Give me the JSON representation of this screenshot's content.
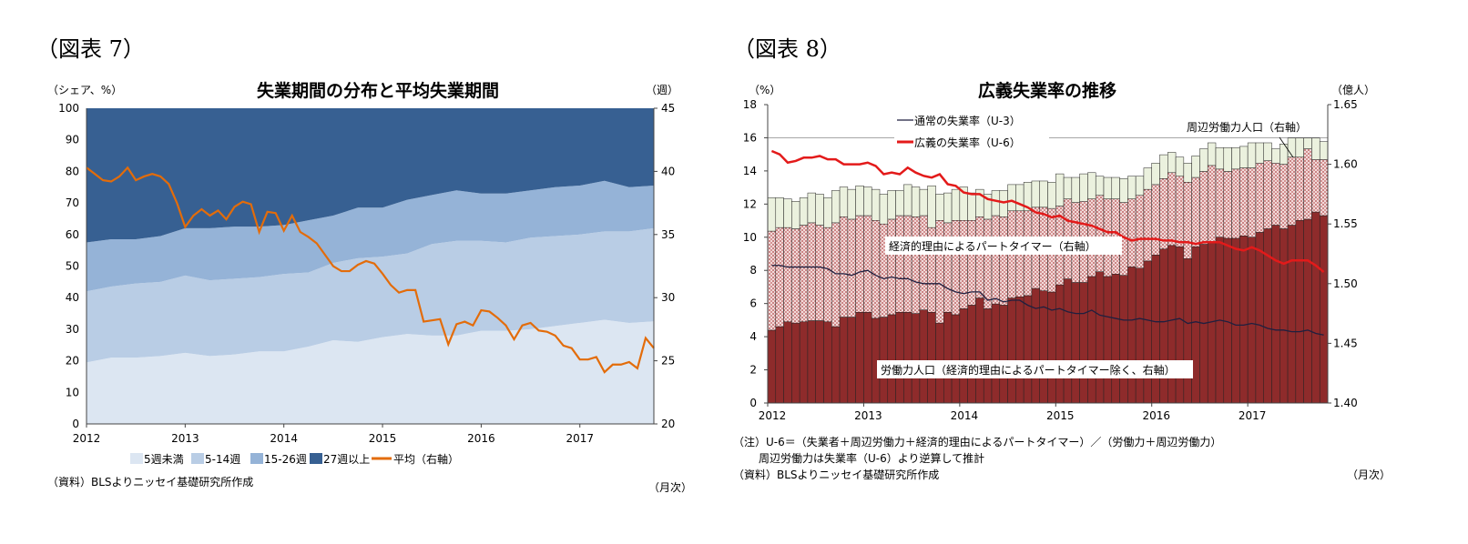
{
  "chart_data": [
    {
      "type": "area",
      "figure_label": "（図表 7）",
      "title": "失業期間の分布と平均失業期間",
      "ylabel": "（シェア、%）",
      "y2label": "（週）",
      "xlabel": "（月次）",
      "source": "（資料）BLSよりニッセイ基礎研究所作成",
      "ylim": [
        0,
        100
      ],
      "y2lim": [
        20,
        45
      ],
      "yticks": [
        "0",
        "10",
        "20",
        "30",
        "40",
        "50",
        "60",
        "70",
        "80",
        "90",
        "100"
      ],
      "y2ticks": [
        "20",
        "25",
        "30",
        "35",
        "40",
        "45"
      ],
      "xticks": [
        "2012",
        "2013",
        "2014",
        "2015",
        "2016",
        "2017"
      ],
      "legend_position": "bottom",
      "area_x": [
        "2012-01",
        "2012-04",
        "2012-07",
        "2012-10",
        "2013-01",
        "2013-04",
        "2013-07",
        "2013-10",
        "2014-01",
        "2014-04",
        "2014-07",
        "2014-10",
        "2015-01",
        "2015-04",
        "2015-07",
        "2015-10",
        "2016-01",
        "2016-04",
        "2016-07",
        "2016-10",
        "2017-01",
        "2017-04",
        "2017-07",
        "2017-10"
      ],
      "series": [
        {
          "name": "5週未満",
          "color": "#dce6f2",
          "stacked": true,
          "values": [
            19.5,
            21,
            21,
            21.5,
            22.5,
            21.5,
            22,
            23,
            23,
            24.5,
            26.5,
            26,
            27.5,
            28.5,
            28,
            28,
            29.5,
            29.5,
            30,
            31,
            32,
            33,
            32,
            32.5
          ]
        },
        {
          "name": "5-14週",
          "color": "#b9cde5",
          "stacked": true,
          "values": [
            22.5,
            22.5,
            23.5,
            23.5,
            24.5,
            24,
            24,
            23.5,
            24.5,
            23.5,
            24.5,
            26.5,
            25.5,
            25.5,
            29,
            30,
            28.5,
            28,
            29,
            28.5,
            28,
            28,
            29,
            29.5
          ]
        },
        {
          "name": "15-26週",
          "color": "#95b3d7",
          "stacked": true,
          "values": [
            15.5,
            15,
            14,
            14.5,
            15,
            16.5,
            16.5,
            16,
            15.5,
            16.5,
            15,
            16,
            15.5,
            17,
            15.5,
            16,
            15,
            15.5,
            15,
            15.5,
            15.5,
            16,
            14,
            13.5
          ]
        },
        {
          "name": "27週以上",
          "color": "#376092",
          "stacked": true,
          "values": [
            42.5,
            41.5,
            41.5,
            40.5,
            38,
            38,
            37.5,
            37.5,
            37,
            35.5,
            34,
            31.5,
            31.5,
            29,
            27.5,
            26,
            27,
            27,
            26,
            25,
            24.5,
            23,
            25,
            24.5
          ]
        },
        {
          "name": "平均（右軸）",
          "color": "#e36c0a",
          "type": "line",
          "axis": "right",
          "x_start": "2012-01",
          "frequency": "monthly",
          "values": [
            40.3,
            39.8,
            39.3,
            39.2,
            39.6,
            40.3,
            39.3,
            39.6,
            39.8,
            39.6,
            39.0,
            37.5,
            35.6,
            36.5,
            37.0,
            36.5,
            36.9,
            36.2,
            37.2,
            37.6,
            37.4,
            35.2,
            36.8,
            36.7,
            35.3,
            36.5,
            35.2,
            34.8,
            34.3,
            33.4,
            32.5,
            32.1,
            32.1,
            32.6,
            32.9,
            32.7,
            31.9,
            31.0,
            30.4,
            30.6,
            30.6,
            28.1,
            28.2,
            28.3,
            26.3,
            27.9,
            28.1,
            27.8,
            29.0,
            28.9,
            28.4,
            27.8,
            26.7,
            27.8,
            28.0,
            27.4,
            27.3,
            27.0,
            26.2,
            26.0,
            25.1,
            25.1,
            25.3,
            24.1,
            24.7,
            24.7,
            24.9,
            24.4,
            26.8,
            26.0
          ]
        }
      ]
    },
    {
      "type": "bar+line",
      "figure_label": "（図表 8）",
      "title": "広義失業率の推移",
      "ylabel": "（%）",
      "y2label": "（億人）",
      "xlabel": "（月次）",
      "note1": "（注）U-6＝（失業者＋周辺労働力＋経済的理由によるパートタイマー）／（労働力＋周辺労働力）",
      "note2": "周辺労働力は失業率（U-6）より逆算して推計",
      "source": "（資料）BLSよりニッセイ基礎研究所作成",
      "ylim": [
        0,
        18
      ],
      "y2lim": [
        1.4,
        1.65
      ],
      "yticks": [
        "0",
        "2",
        "4",
        "6",
        "8",
        "10",
        "12",
        "14",
        "16",
        "18"
      ],
      "y2ticks": [
        "1.40",
        "1.45",
        "1.50",
        "1.55",
        "1.60",
        "1.65"
      ],
      "xticks": [
        "2012",
        "2013",
        "2014",
        "2015",
        "2016",
        "2017"
      ],
      "x_start": "2012-01",
      "frequency": "monthly",
      "bars_stacked_top_values": true,
      "bar_series": [
        {
          "name": "労働力人口（経済的理由によるパートタイマー除く、右軸）",
          "color": "#8e2b2b",
          "axis": "right",
          "values": [
            1.461,
            1.464,
            1.468,
            1.467,
            1.468,
            1.469,
            1.469,
            1.468,
            1.464,
            1.472,
            1.472,
            1.476,
            1.476,
            1.471,
            1.472,
            1.474,
            1.476,
            1.476,
            1.475,
            1.478,
            1.476,
            1.467,
            1.476,
            1.474,
            1.479,
            1.482,
            1.488,
            1.479,
            1.483,
            1.482,
            1.488,
            1.489,
            1.49,
            1.496,
            1.494,
            1.493,
            1.499,
            1.504,
            1.501,
            1.501,
            1.506,
            1.51,
            1.506,
            1.508,
            1.507,
            1.514,
            1.513,
            1.519,
            1.524,
            1.529,
            1.532,
            1.531,
            1.521,
            1.531,
            1.533,
            1.535,
            1.539,
            1.538,
            1.538,
            1.54,
            1.539,
            1.543,
            1.546,
            1.549,
            1.546,
            1.549,
            1.553,
            1.554,
            1.56,
            1.557
          ]
        },
        {
          "name": "経済的理由によるパートタイマー（右軸）",
          "color": "#e3b8b8",
          "axis": "right",
          "values": [
            1.544,
            1.547,
            1.547,
            1.546,
            1.549,
            1.551,
            1.549,
            1.547,
            1.551,
            1.556,
            1.554,
            1.557,
            1.557,
            1.553,
            1.55,
            1.554,
            1.557,
            1.557,
            1.556,
            1.557,
            1.547,
            1.553,
            1.551,
            1.553,
            1.553,
            1.553,
            1.556,
            1.554,
            1.557,
            1.556,
            1.561,
            1.561,
            1.561,
            1.564,
            1.564,
            1.563,
            1.565,
            1.571,
            1.568,
            1.569,
            1.571,
            1.574,
            1.571,
            1.571,
            1.568,
            1.571,
            1.574,
            1.579,
            1.583,
            1.588,
            1.593,
            1.59,
            1.585,
            1.589,
            1.594,
            1.599,
            1.596,
            1.594,
            1.596,
            1.597,
            1.597,
            1.601,
            1.603,
            1.601,
            1.6,
            1.606,
            1.606,
            1.613,
            1.604,
            1.604
          ]
        },
        {
          "name": "周辺労働力人口（右軸）",
          "color": "#ebf1de",
          "axis": "right",
          "values": [
            1.572,
            1.572,
            1.571,
            1.569,
            1.572,
            1.576,
            1.575,
            1.572,
            1.578,
            1.581,
            1.579,
            1.582,
            1.581,
            1.579,
            1.575,
            1.578,
            1.578,
            1.583,
            1.581,
            1.579,
            1.582,
            1.575,
            1.576,
            1.579,
            1.581,
            1.576,
            1.579,
            1.575,
            1.578,
            1.578,
            1.583,
            1.583,
            1.585,
            1.586,
            1.586,
            1.585,
            1.592,
            1.589,
            1.589,
            1.592,
            1.593,
            1.59,
            1.589,
            1.589,
            1.588,
            1.59,
            1.59,
            1.597,
            1.601,
            1.608,
            1.61,
            1.606,
            1.601,
            1.607,
            1.613,
            1.618,
            1.614,
            1.614,
            1.614,
            1.615,
            1.618,
            1.618,
            1.618,
            1.613,
            1.617,
            1.622,
            1.622,
            1.622,
            1.622,
            1.619
          ]
        }
      ],
      "line_series": [
        {
          "name": "通常の失業率（U-3）",
          "color": "#1f1f3f",
          "values": [
            8.3,
            8.3,
            8.2,
            8.2,
            8.2,
            8.2,
            8.2,
            8.1,
            7.8,
            7.8,
            7.7,
            7.9,
            8.0,
            7.7,
            7.5,
            7.6,
            7.5,
            7.5,
            7.3,
            7.2,
            7.2,
            7.2,
            6.9,
            6.7,
            6.6,
            6.7,
            6.7,
            6.2,
            6.3,
            6.1,
            6.2,
            6.2,
            5.9,
            5.7,
            5.8,
            5.6,
            5.7,
            5.5,
            5.4,
            5.4,
            5.6,
            5.3,
            5.2,
            5.1,
            5.0,
            5.0,
            5.1,
            5.0,
            4.9,
            4.9,
            5.0,
            5.1,
            4.8,
            4.9,
            4.8,
            4.9,
            5.0,
            4.9,
            4.7,
            4.7,
            4.8,
            4.7,
            4.5,
            4.4,
            4.4,
            4.3,
            4.3,
            4.4,
            4.2,
            4.1
          ]
        },
        {
          "name": "広義の失業率（U-6）",
          "color": "#e31a1a",
          "values": [
            15.2,
            15.0,
            14.5,
            14.6,
            14.8,
            14.8,
            14.9,
            14.7,
            14.7,
            14.4,
            14.4,
            14.4,
            14.5,
            14.3,
            13.8,
            13.9,
            13.8,
            14.2,
            13.9,
            13.7,
            13.6,
            13.8,
            13.2,
            13.1,
            12.7,
            12.6,
            12.6,
            12.3,
            12.2,
            12.1,
            12.2,
            12.0,
            11.8,
            11.5,
            11.4,
            11.2,
            11.3,
            11.0,
            10.9,
            10.8,
            10.7,
            10.5,
            10.3,
            10.3,
            10.0,
            9.8,
            9.9,
            9.9,
            9.9,
            9.8,
            9.8,
            9.7,
            9.7,
            9.6,
            9.7,
            9.7,
            9.7,
            9.5,
            9.3,
            9.2,
            9.4,
            9.2,
            8.9,
            8.6,
            8.4,
            8.6,
            8.6,
            8.6,
            8.3,
            7.9
          ]
        }
      ]
    }
  ]
}
